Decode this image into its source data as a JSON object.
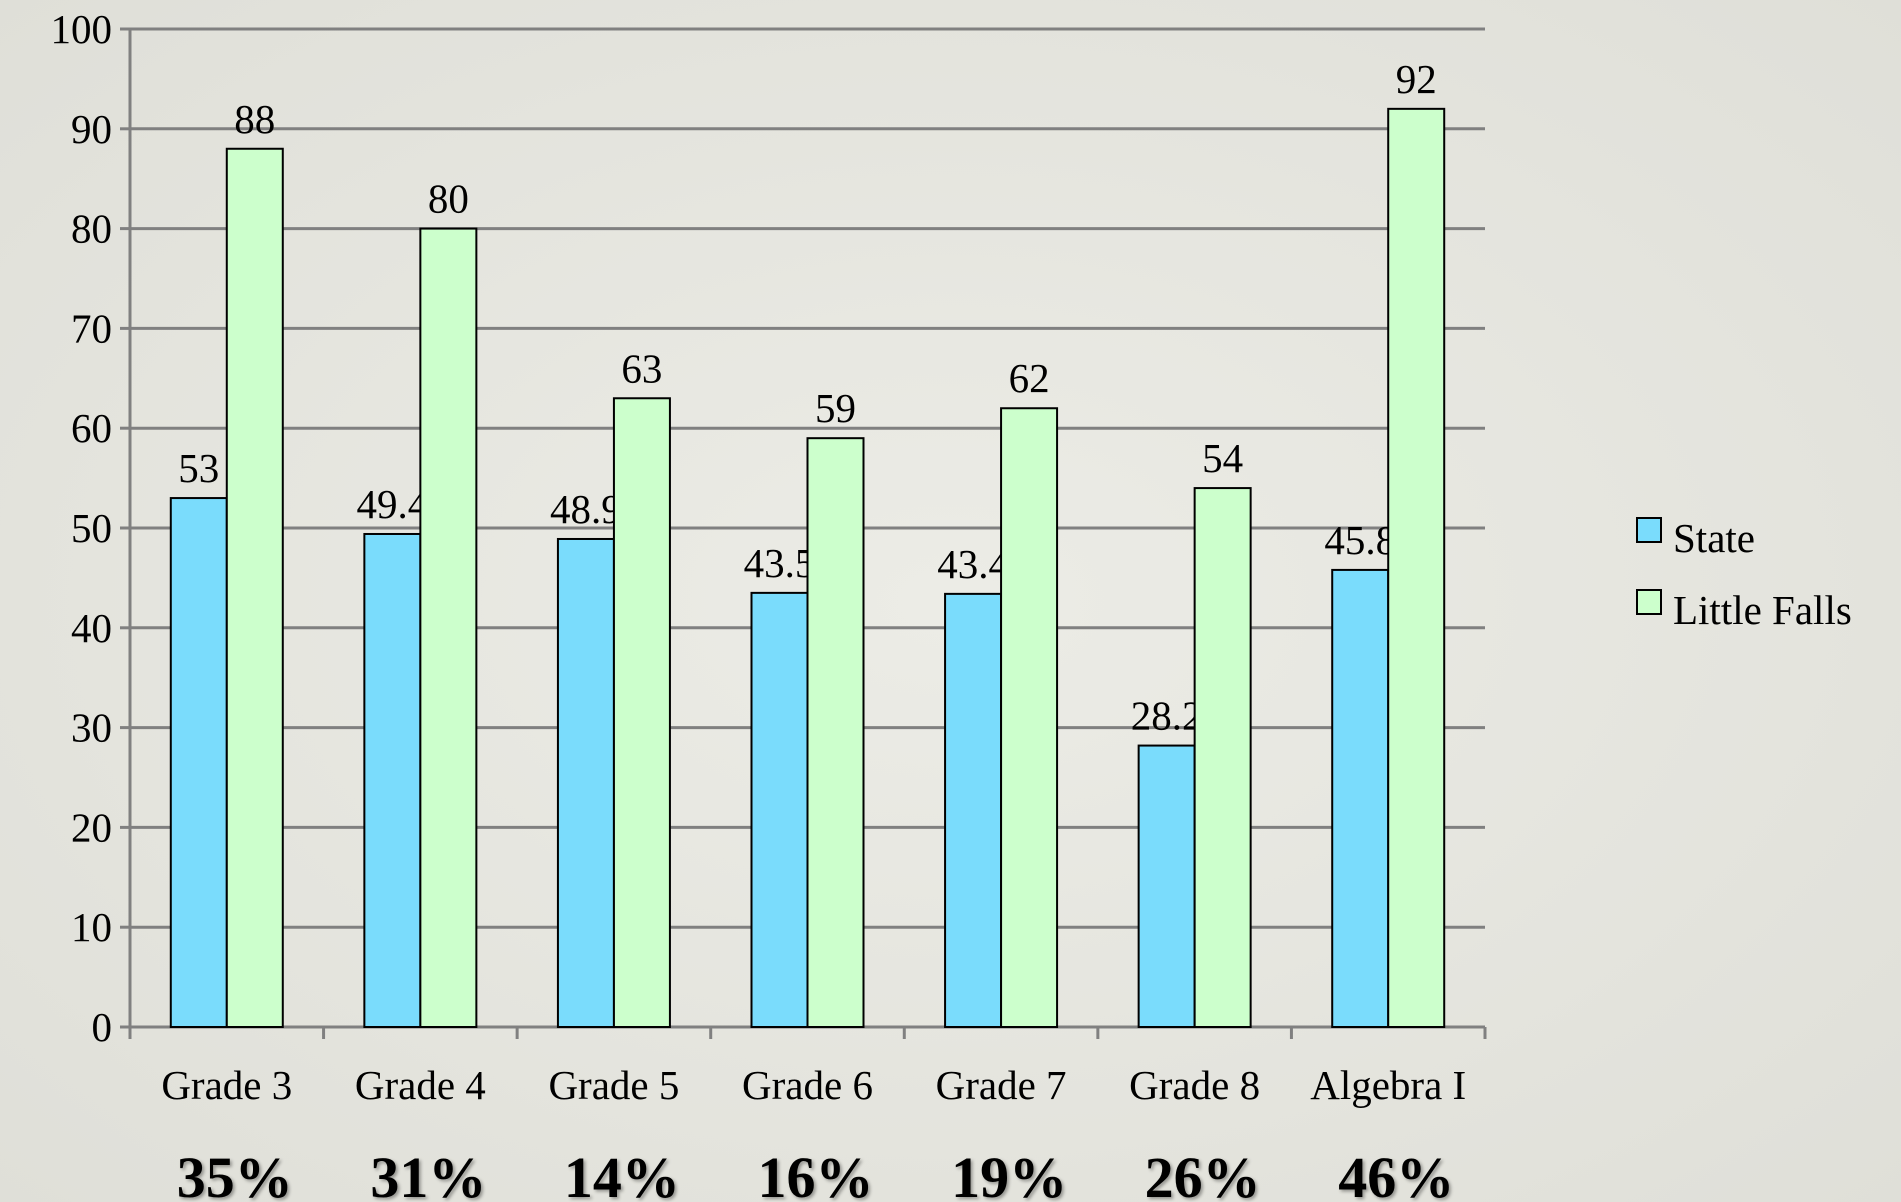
{
  "chart_data": {
    "type": "bar",
    "categories": [
      "Grade 3",
      "Grade 4",
      "Grade 5",
      "Grade 6",
      "Grade 7",
      "Grade 8",
      "Algebra I"
    ],
    "series": [
      {
        "name": "State",
        "color": "#7adcfc",
        "values": [
          53,
          49.4,
          48.9,
          43.5,
          43.4,
          28.2,
          45.8
        ]
      },
      {
        "name": "Little Falls",
        "color": "#ccffcc",
        "values": [
          88,
          80,
          63,
          59,
          62,
          54,
          92
        ]
      }
    ],
    "annotations": [
      "35%",
      "31%",
      "14%",
      "16%",
      "19%",
      "26%",
      "46%"
    ],
    "ylim": [
      0,
      100
    ],
    "yticks": [
      0,
      10,
      20,
      30,
      40,
      50,
      60,
      70,
      80,
      90,
      100
    ],
    "grid": true,
    "legend": "right"
  }
}
